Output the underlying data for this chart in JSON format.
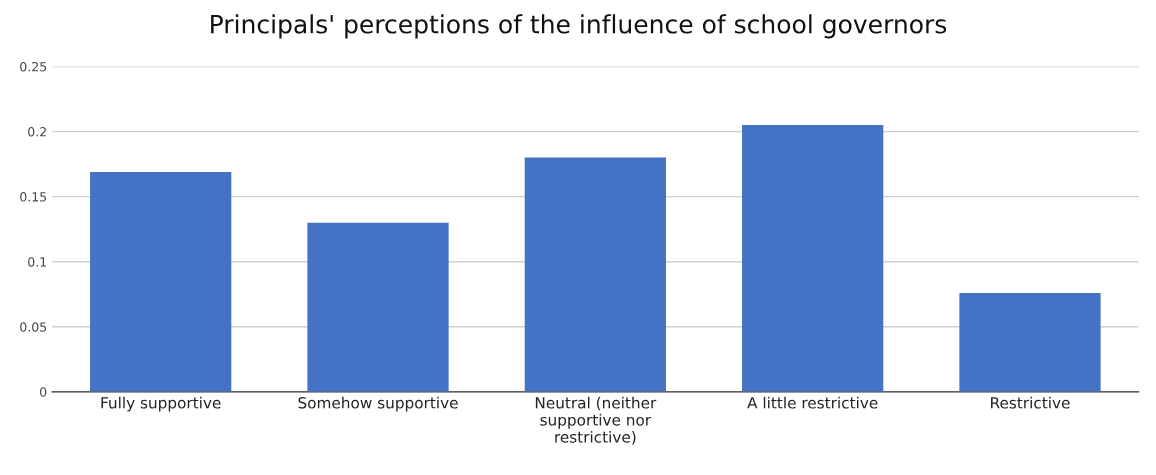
{
  "chart_data": {
    "type": "bar",
    "title": "Principals' perceptions of the influence of school governors",
    "categories": [
      "Fully supportive",
      "Somehow supportive",
      "Neutral (neither supportive nor restrictive)",
      "A little restrictive",
      "Restrictive"
    ],
    "values": [
      0.169,
      0.13,
      0.18,
      0.205,
      0.076
    ],
    "color": "#4472c4",
    "ylim": [
      0,
      0.25
    ],
    "yticks": [
      0,
      0.05,
      0.1,
      0.15,
      0.2,
      0.25
    ],
    "grid": "y",
    "legend": false
  }
}
